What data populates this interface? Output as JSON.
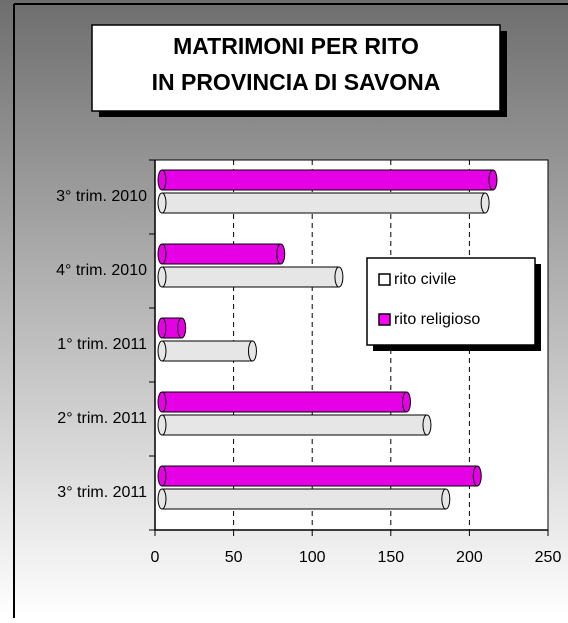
{
  "chart_data": {
    "type": "bar",
    "orientation": "horizontal",
    "title_lines": [
      "MATRIMONI PER RITO",
      "IN PROVINCIA DI SAVONA"
    ],
    "categories": [
      "3° trim. 2010",
      "4° trim. 2010",
      "1° trim. 2011",
      "2° trim. 2011",
      "3° trim. 2011"
    ],
    "series": [
      {
        "name": "rito civile",
        "color": "#e6e6e6",
        "legend_color": "#ffffff",
        "values": [
          210,
          117,
          62,
          173,
          185
        ]
      },
      {
        "name": "rito religioso",
        "color": "#e600e6",
        "legend_color": "#ff00ff",
        "values": [
          215,
          80,
          17,
          160,
          205
        ]
      }
    ],
    "xlim": [
      0,
      250
    ],
    "xticks": [
      0,
      50,
      100,
      150,
      200,
      250
    ],
    "grid": true,
    "legend_position": "right"
  }
}
